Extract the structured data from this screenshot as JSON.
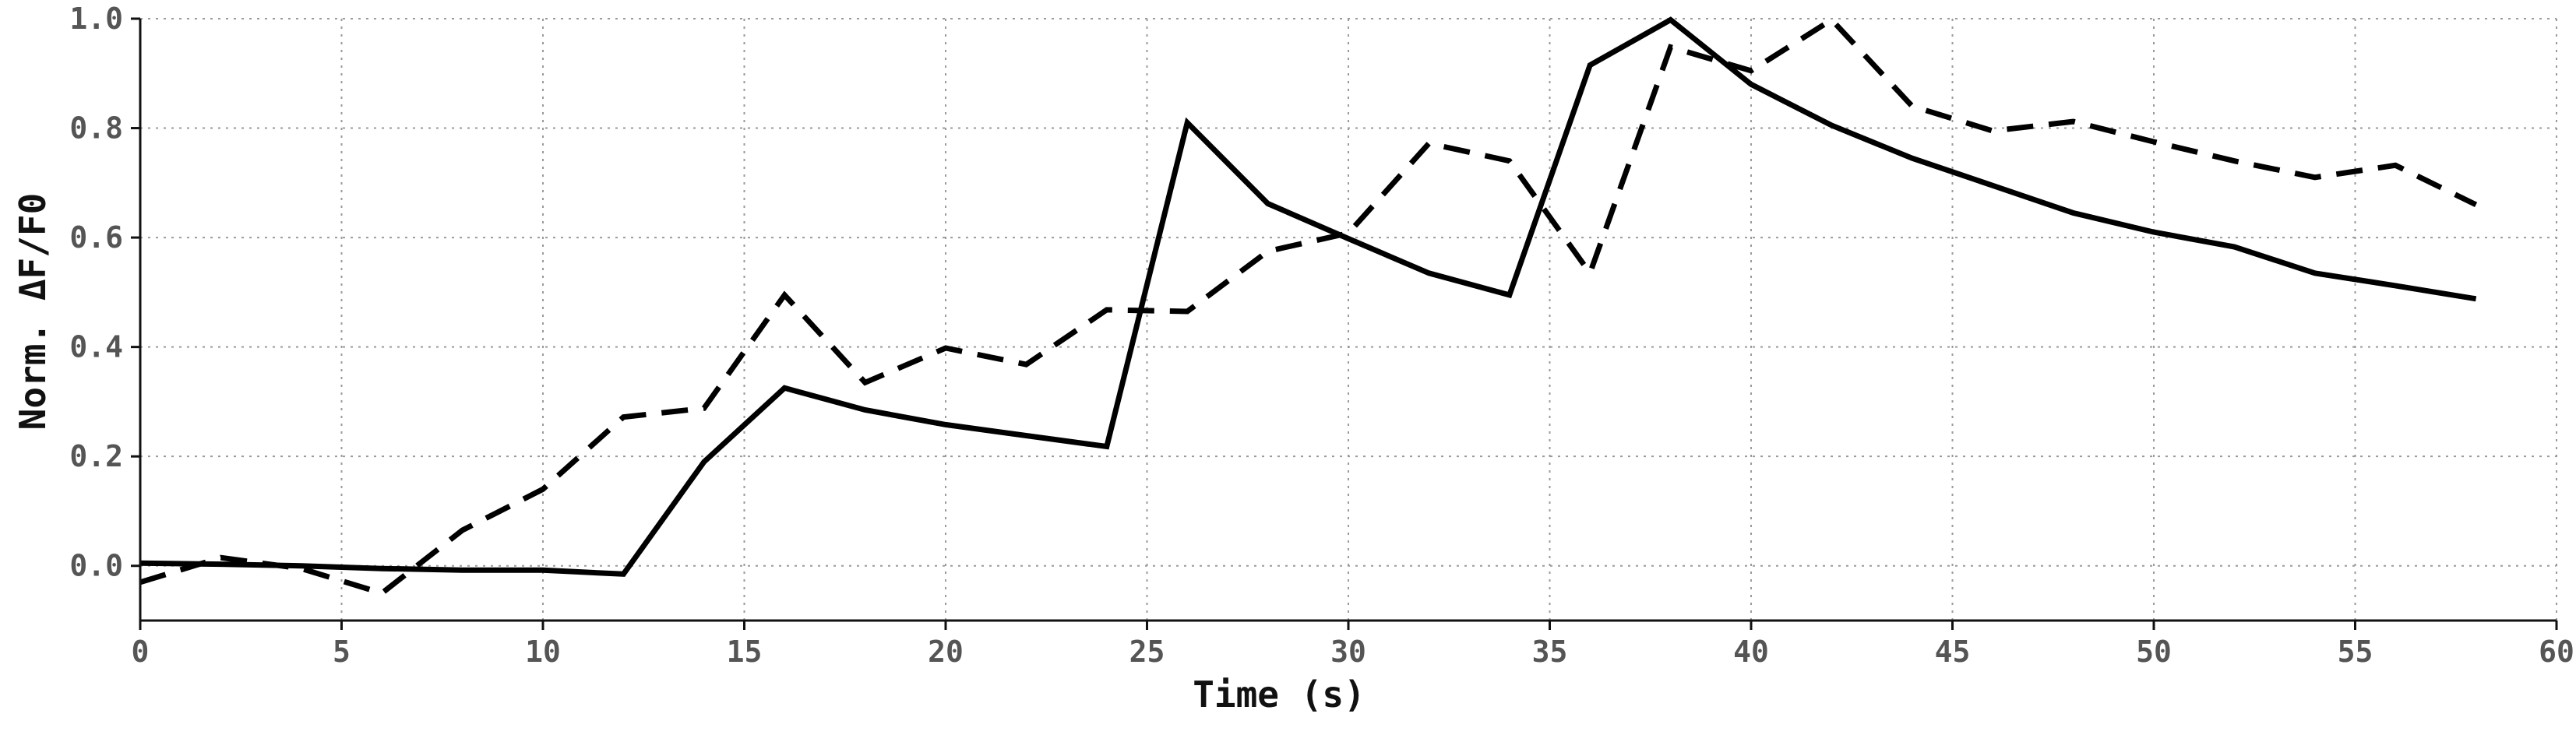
{
  "chart_data": {
    "type": "line",
    "title": "",
    "xlabel": "Time (s)",
    "ylabel": "Norm. ΔF/F0",
    "xlim": [
      0,
      60
    ],
    "ylim": [
      -0.1,
      1.0
    ],
    "x_ticks": [
      0,
      5,
      10,
      15,
      20,
      25,
      30,
      35,
      40,
      45,
      50,
      55,
      60
    ],
    "x_tick_labels": [
      "0",
      "5",
      "10",
      "15",
      "20",
      "25",
      "30",
      "35",
      "40",
      "45",
      "50",
      "55",
      "60"
    ],
    "y_ticks": [
      0.0,
      0.2,
      0.4,
      0.6,
      0.8,
      1.0
    ],
    "y_tick_labels": [
      "0.0",
      "0.2",
      "0.4",
      "0.6",
      "0.8",
      "1.0"
    ],
    "grid": true,
    "legend": "none",
    "series": [
      {
        "style": "solid",
        "color": "#000000",
        "x": [
          0,
          2,
          4,
          6,
          8,
          10,
          12,
          14,
          16,
          18,
          20,
          22,
          24,
          26,
          28,
          30,
          32,
          34,
          36,
          38,
          40,
          42,
          44,
          46,
          48,
          50,
          52,
          54,
          56,
          58
        ],
        "y": [
          0.005,
          0.003,
          0.0,
          -0.005,
          -0.008,
          -0.008,
          -0.015,
          0.19,
          0.325,
          0.285,
          0.258,
          0.238,
          0.218,
          0.81,
          0.662,
          0.598,
          0.535,
          0.495,
          0.915,
          0.998,
          0.88,
          0.805,
          0.745,
          0.695,
          0.645,
          0.61,
          0.583,
          0.535,
          0.512,
          0.488
        ]
      },
      {
        "style": "dashed",
        "color": "#000000",
        "x": [
          0,
          2,
          4,
          6,
          8,
          10,
          12,
          14,
          16,
          18,
          20,
          22,
          24,
          26,
          28,
          30,
          32,
          34,
          36,
          38,
          40,
          42,
          44,
          46,
          48,
          50,
          52,
          54,
          56,
          58
        ],
        "y": [
          -0.03,
          0.015,
          -0.005,
          -0.05,
          0.065,
          0.14,
          0.272,
          0.288,
          0.495,
          0.335,
          0.398,
          0.368,
          0.468,
          0.465,
          0.575,
          0.608,
          0.772,
          0.74,
          0.535,
          0.948,
          0.905,
          0.998,
          0.84,
          0.795,
          0.812,
          0.775,
          0.74,
          0.71,
          0.732,
          0.66
        ]
      }
    ]
  }
}
